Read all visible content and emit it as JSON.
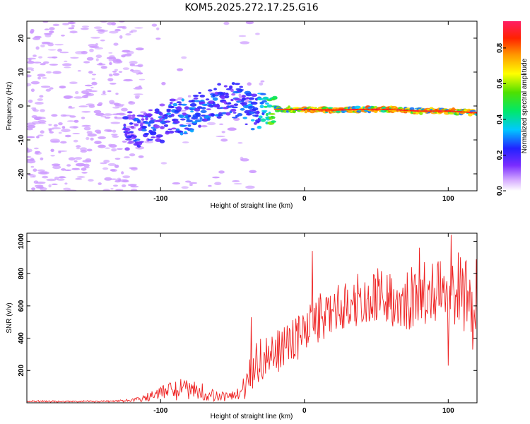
{
  "title": "KOM5.2025.272.17.25.G16",
  "chart_data": [
    {
      "type": "heatmap",
      "name": "spectrogram",
      "xlabel": "Height of straight line (km)",
      "ylabel": "Frequency (Hz)",
      "xlim": [
        -193,
        120
      ],
      "ylim": [
        -25,
        25
      ],
      "xticks": [
        -100,
        0,
        100
      ],
      "yticks": [
        -20,
        -10,
        0,
        10,
        20
      ],
      "colorbar": {
        "label": "Normalized spectral amplitude",
        "range": [
          0,
          0.95
        ],
        "ticks": [
          0.0,
          0.2,
          0.4,
          0.6,
          0.8
        ],
        "tick_labels": [
          "0.0",
          "0.2",
          "0.4",
          "0.6",
          "0.8"
        ]
      },
      "ridge": {
        "x": [
          -120,
          -100,
          -80,
          -60,
          -50,
          -40,
          -30,
          -20,
          0,
          20,
          40,
          60,
          80,
          100,
          120
        ],
        "freq": [
          -8,
          -5,
          -2,
          1,
          3,
          0,
          -1,
          -1,
          -1,
          -1.2,
          -1,
          -1,
          -1.5,
          -1.5,
          -2
        ],
        "amplitude": [
          0.2,
          0.22,
          0.25,
          0.22,
          0.2,
          0.25,
          0.3,
          0.6,
          0.85,
          0.9,
          0.88,
          0.9,
          0.85,
          0.9,
          0.85
        ]
      },
      "colors": {
        "background": "#ffffff",
        "noise": "#cc99ff"
      }
    },
    {
      "type": "line",
      "name": "snr",
      "xlabel": "Height of straight line (km)",
      "ylabel": "SNR (v/v)",
      "xlim": [
        -193,
        120
      ],
      "ylim": [
        0,
        1050
      ],
      "xticks": [
        -100,
        0,
        100
      ],
      "yticks": [
        200,
        400,
        600,
        800,
        1000
      ],
      "series": [
        {
          "name": "SNR",
          "color": "#ee2222",
          "envelope": {
            "x": [
              -193,
              -160,
              -130,
              -115,
              -105,
              -95,
              -85,
              -75,
              -65,
              -55,
              -45,
              -40,
              -35,
              -30,
              -25,
              -20,
              -10,
              0,
              10,
              20,
              40,
              60,
              80,
              100,
              120
            ],
            "mean": [
              10,
              8,
              10,
              20,
              40,
              70,
              90,
              80,
              50,
              35,
              50,
              130,
              220,
              270,
              290,
              310,
              370,
              440,
              520,
              600,
              640,
              660,
              660,
              680,
              660
            ],
            "spread": [
              6,
              5,
              6,
              15,
              40,
              60,
              70,
              60,
              40,
              30,
              45,
              100,
              140,
              130,
              130,
              130,
              140,
              150,
              150,
              160,
              180,
              200,
              220,
              230,
              230
            ]
          },
          "spikes": [
            {
              "x": 5.5,
              "y": 940
            },
            {
              "x": -37,
              "y": 530
            },
            {
              "x": 102,
              "y": 1040
            },
            {
              "x": 107,
              "y": 930
            },
            {
              "x": 80,
              "y": 960
            },
            {
              "x": 100,
              "y": 230
            },
            {
              "x": 117,
              "y": 330
            }
          ]
        }
      ]
    }
  ]
}
